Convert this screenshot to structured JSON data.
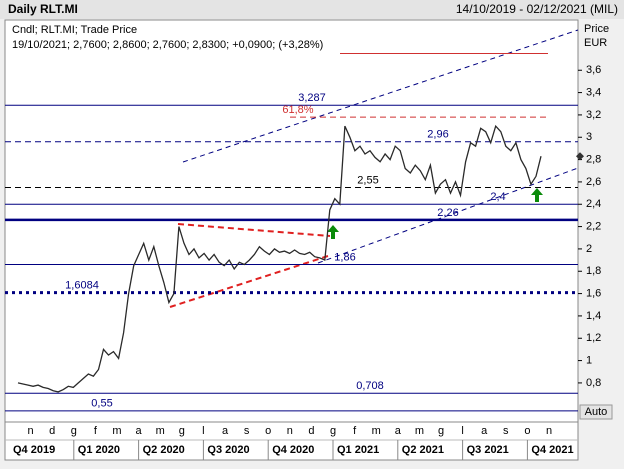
{
  "chart_data": {
    "type": "line",
    "title": "Daily RLT.MI",
    "date_range": "14/10/2019 - 02/12/2021 (MIL)",
    "legend_text": "Cndl; RLT.MI; Trade Price",
    "info_text": "19/10/2021; 2,7600; 2,8600; 2,7600; 2,8300; +0,0900; (+3,28%)",
    "y_label": "Price",
    "y_unit": "EUR",
    "button": "Auto",
    "months": [
      "n",
      "d",
      "g",
      "f",
      "m",
      "a",
      "m",
      "g",
      "l",
      "a",
      "s",
      "o",
      "n",
      "d",
      "g",
      "f",
      "m",
      "a",
      "m",
      "g",
      "l",
      "a",
      "s",
      "o",
      "n"
    ],
    "quarters": [
      "Q4 2019",
      "Q1 2020",
      "Q2 2020",
      "Q3 2020",
      "Q4 2020",
      "Q1 2021",
      "Q2 2021",
      "Q3 2021",
      "Q4 2021"
    ],
    "ylim": [
      0.45,
      4.05
    ],
    "yticks": [
      {
        "value": 3.6,
        "label": "3,6"
      },
      {
        "value": 3.4,
        "label": "3,4"
      },
      {
        "value": 3.2,
        "label": "3,2"
      },
      3,
      {
        "value": 2.8,
        "label": "2,8"
      },
      {
        "value": 2.6,
        "label": "2,6"
      },
      {
        "value": 2.4,
        "label": "2,4"
      },
      {
        "value": 2.2,
        "label": "2,2"
      },
      2,
      {
        "value": 1.8,
        "label": "1,8"
      },
      {
        "value": 1.6,
        "label": "1,6"
      },
      {
        "value": 1.4,
        "label": "1,4"
      },
      {
        "value": 1.2,
        "label": "1,2"
      },
      1,
      {
        "value": 0.8,
        "label": "0,8"
      }
    ],
    "levels": [
      {
        "value": 3.75,
        "color": "#d03030",
        "style": "solid"
      },
      {
        "value": 3.287,
        "label": "3,287",
        "color": "#000080",
        "style": "solid"
      },
      {
        "value": 3.18,
        "label": "61,8%",
        "color": "#d03030",
        "style": "dashed"
      },
      {
        "value": 2.96,
        "label": "2,96",
        "color": "#000080",
        "style": "dashed"
      },
      {
        "value": 2.55,
        "label": "2,55",
        "color": "#000000",
        "style": "dashed"
      },
      {
        "value": 2.4,
        "label": "2,4",
        "color": "#000080",
        "style": "solid"
      },
      {
        "value": 2.26,
        "label": "2,26",
        "color": "#000080",
        "style": "thick"
      },
      {
        "value": 1.86,
        "label": "1,86",
        "color": "#000080",
        "style": "solid"
      },
      {
        "value": 1.6084,
        "label": "1,6084",
        "color": "#000080",
        "style": "dotted"
      },
      {
        "value": 0.708,
        "label": "0,708",
        "color": "#000080",
        "style": "solid"
      },
      {
        "value": 0.55,
        "label": "0,55",
        "color": "#000080",
        "style": "solid"
      }
    ],
    "series": [
      {
        "color": "#2a2a2a",
        "values": [
          0.8,
          0.79,
          0.78,
          0.77,
          0.78,
          0.76,
          0.75,
          0.73,
          0.72,
          0.74,
          0.77,
          0.76,
          0.8,
          0.84,
          0.88,
          0.86,
          0.92,
          1.1,
          1.05,
          1.08,
          1.02,
          1.25,
          1.6,
          1.85,
          1.95,
          2.05,
          1.9,
          2.02,
          1.85,
          1.7,
          1.52,
          1.6,
          2.2,
          2.05,
          1.95,
          2.0,
          1.92,
          1.96,
          1.9,
          1.95,
          1.88,
          1.85,
          1.9,
          1.82,
          1.88,
          1.86,
          1.9,
          1.95,
          2.02,
          1.98,
          1.95,
          2.0,
          1.97,
          1.98,
          1.96,
          1.99,
          1.96,
          1.95,
          1.97,
          1.93,
          1.92,
          1.9,
          2.35,
          2.45,
          2.4,
          3.1,
          3.0,
          2.88,
          2.92,
          2.85,
          2.88,
          2.82,
          2.78,
          2.85,
          2.8,
          2.92,
          2.88,
          2.72,
          2.68,
          2.75,
          2.7,
          2.62,
          2.75,
          2.5,
          2.58,
          2.62,
          2.5,
          2.6,
          2.48,
          2.78,
          2.95,
          2.92,
          3.08,
          3.05,
          2.95,
          3.1,
          3.05,
          2.92,
          2.88,
          2.95,
          2.8,
          2.72,
          2.58,
          2.65,
          2.83
        ]
      }
    ]
  }
}
